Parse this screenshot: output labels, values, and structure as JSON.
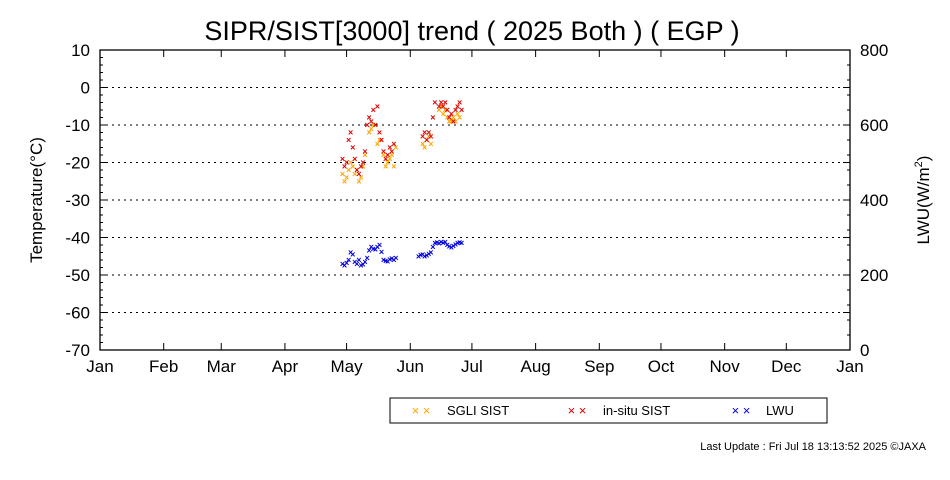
{
  "chart_data": {
    "type": "scatter",
    "title": "SIPR/SIST[3000] trend ( 2025 Both ) ( EGP )",
    "ylabel": "Temperature(°C)",
    "y2label": "LWU(W/m",
    "y2label_sup": "2",
    "y2label_close": ")",
    "xlabel": "",
    "x_axis_type": "date",
    "xlim": [
      "2025-01-01",
      "2026-01-01"
    ],
    "ylim": [
      -70,
      10
    ],
    "y2lim": [
      0,
      800
    ],
    "yticks": [
      "10",
      "0",
      "-10",
      "-20",
      "-30",
      "-40",
      "-50",
      "-60",
      "-70"
    ],
    "y2ticks": [
      "800",
      "600",
      "400",
      "200",
      "0"
    ],
    "y2tick_values": [
      800,
      600,
      400,
      200,
      0
    ],
    "xticks": [
      "Jan",
      "Feb",
      "Mar",
      "Apr",
      "May",
      "Jun",
      "Jul",
      "Aug",
      "Sep",
      "Oct",
      "Nov",
      "Dec",
      "Jan"
    ],
    "xtick_dates": [
      "2025-01-01",
      "2025-02-01",
      "2025-03-01",
      "2025-04-01",
      "2025-05-01",
      "2025-06-01",
      "2025-07-01",
      "2025-08-01",
      "2025-09-01",
      "2025-10-01",
      "2025-11-01",
      "2025-12-01",
      "2026-01-01"
    ],
    "grid": "horizontal dotted",
    "legend_placement": "below",
    "series": [
      {
        "name": "SGLI SIST",
        "axis": "left",
        "color": "#ffa500",
        "marker": "x",
        "points": [
          [
            "2025-04-29",
            -23
          ],
          [
            "2025-04-30",
            -25
          ],
          [
            "2025-05-01",
            -24
          ],
          [
            "2025-05-02",
            -22
          ],
          [
            "2025-05-03",
            -20
          ],
          [
            "2025-05-04",
            -21
          ],
          [
            "2025-05-05",
            -23
          ],
          [
            "2025-05-06",
            -22
          ],
          [
            "2025-05-07",
            -25
          ],
          [
            "2025-05-08",
            -24
          ],
          [
            "2025-05-09",
            -21
          ],
          [
            "2025-05-10",
            -18
          ],
          [
            "2025-05-12",
            -12
          ],
          [
            "2025-05-13",
            -11
          ],
          [
            "2025-05-14",
            -10
          ],
          [
            "2025-05-16",
            -15
          ],
          [
            "2025-05-17",
            -14
          ],
          [
            "2025-05-19",
            -18
          ],
          [
            "2025-05-20",
            -21
          ],
          [
            "2025-05-21",
            -20
          ],
          [
            "2025-05-22",
            -19
          ],
          [
            "2025-05-23",
            -18
          ],
          [
            "2025-05-24",
            -21
          ],
          [
            "2025-05-25",
            -16
          ],
          [
            "2025-06-07",
            -15
          ],
          [
            "2025-06-08",
            -16
          ],
          [
            "2025-06-09",
            -14
          ],
          [
            "2025-06-10",
            -13
          ],
          [
            "2025-06-11",
            -15
          ],
          [
            "2025-06-15",
            -6
          ],
          [
            "2025-06-16",
            -5
          ],
          [
            "2025-06-17",
            -7
          ],
          [
            "2025-06-18",
            -6
          ],
          [
            "2025-06-19",
            -8
          ],
          [
            "2025-06-20",
            -9
          ],
          [
            "2025-06-21",
            -9
          ],
          [
            "2025-06-22",
            -8
          ],
          [
            "2025-06-23",
            -9
          ],
          [
            "2025-06-24",
            -7
          ],
          [
            "2025-06-25",
            -8
          ]
        ]
      },
      {
        "name": "in-situ SIST",
        "axis": "left",
        "color": "#dd0000",
        "marker": "x",
        "points": [
          [
            "2025-04-29",
            -19
          ],
          [
            "2025-04-30",
            -21
          ],
          [
            "2025-05-01",
            -20
          ],
          [
            "2025-05-02",
            -14
          ],
          [
            "2025-05-03",
            -12
          ],
          [
            "2025-05-04",
            -16
          ],
          [
            "2025-05-05",
            -19
          ],
          [
            "2025-05-06",
            -22
          ],
          [
            "2025-05-07",
            -23
          ],
          [
            "2025-05-08",
            -21
          ],
          [
            "2025-05-09",
            -20
          ],
          [
            "2025-05-10",
            -17
          ],
          [
            "2025-05-11",
            -10
          ],
          [
            "2025-05-12",
            -8
          ],
          [
            "2025-05-13",
            -9
          ],
          [
            "2025-05-14",
            -6
          ],
          [
            "2025-05-15",
            -10
          ],
          [
            "2025-05-16",
            -5
          ],
          [
            "2025-05-17",
            -12
          ],
          [
            "2025-05-18",
            -14
          ],
          [
            "2025-05-19",
            -17
          ],
          [
            "2025-05-20",
            -19
          ],
          [
            "2025-05-21",
            -18
          ],
          [
            "2025-05-22",
            -16
          ],
          [
            "2025-05-23",
            -17
          ],
          [
            "2025-05-24",
            -15
          ],
          [
            "2025-06-07",
            -13
          ],
          [
            "2025-06-08",
            -12
          ],
          [
            "2025-06-09",
            -14
          ],
          [
            "2025-06-10",
            -12
          ],
          [
            "2025-06-11",
            -13
          ],
          [
            "2025-06-12",
            -8
          ],
          [
            "2025-06-13",
            -4
          ],
          [
            "2025-06-15",
            -5
          ],
          [
            "2025-06-16",
            -4
          ],
          [
            "2025-06-17",
            -5
          ],
          [
            "2025-06-18",
            -4
          ],
          [
            "2025-06-19",
            -6
          ],
          [
            "2025-06-20",
            -8
          ],
          [
            "2025-06-21",
            -7
          ],
          [
            "2025-06-22",
            -9
          ],
          [
            "2025-06-23",
            -6
          ],
          [
            "2025-06-24",
            -5
          ],
          [
            "2025-06-25",
            -4
          ],
          [
            "2025-06-26",
            -6
          ]
        ]
      },
      {
        "name": "LWU",
        "axis": "right",
        "color": "#0000dd",
        "marker": "x",
        "points": [
          [
            "2025-04-29",
            230
          ],
          [
            "2025-04-30",
            225
          ],
          [
            "2025-05-01",
            232
          ],
          [
            "2025-05-02",
            240
          ],
          [
            "2025-05-03",
            260
          ],
          [
            "2025-05-04",
            255
          ],
          [
            "2025-05-05",
            235
          ],
          [
            "2025-05-06",
            230
          ],
          [
            "2025-05-07",
            240
          ],
          [
            "2025-05-08",
            225
          ],
          [
            "2025-05-09",
            228
          ],
          [
            "2025-05-10",
            235
          ],
          [
            "2025-05-11",
            245
          ],
          [
            "2025-05-12",
            265
          ],
          [
            "2025-05-13",
            275
          ],
          [
            "2025-05-14",
            270
          ],
          [
            "2025-05-15",
            268
          ],
          [
            "2025-05-16",
            275
          ],
          [
            "2025-05-17",
            280
          ],
          [
            "2025-05-18",
            262
          ],
          [
            "2025-05-19",
            240
          ],
          [
            "2025-05-20",
            238
          ],
          [
            "2025-05-21",
            236
          ],
          [
            "2025-05-22",
            242
          ],
          [
            "2025-05-23",
            244
          ],
          [
            "2025-05-24",
            240
          ],
          [
            "2025-05-25",
            245
          ],
          [
            "2025-06-05",
            250
          ],
          [
            "2025-06-06",
            253
          ],
          [
            "2025-06-07",
            255
          ],
          [
            "2025-06-08",
            250
          ],
          [
            "2025-06-09",
            252
          ],
          [
            "2025-06-10",
            256
          ],
          [
            "2025-06-11",
            260
          ],
          [
            "2025-06-12",
            275
          ],
          [
            "2025-06-13",
            285
          ],
          [
            "2025-06-14",
            287
          ],
          [
            "2025-06-15",
            284
          ],
          [
            "2025-06-16",
            288
          ],
          [
            "2025-06-17",
            286
          ],
          [
            "2025-06-18",
            288
          ],
          [
            "2025-06-19",
            280
          ],
          [
            "2025-06-20",
            276
          ],
          [
            "2025-06-21",
            274
          ],
          [
            "2025-06-22",
            277
          ],
          [
            "2025-06-23",
            282
          ],
          [
            "2025-06-24",
            285
          ],
          [
            "2025-06-25",
            287
          ],
          [
            "2025-06-26",
            286
          ]
        ]
      }
    ]
  },
  "legend": {
    "marker_text": "× ×",
    "items": [
      {
        "label": "SGLI SIST",
        "color": "#ffa500"
      },
      {
        "label": "in-situ SIST",
        "color": "#dd0000"
      },
      {
        "label": "LWU",
        "color": "#0000dd"
      }
    ]
  },
  "footer": {
    "last_update": "Last Update : Fri Jul 18 13:13:52 2025 ©JAXA"
  }
}
